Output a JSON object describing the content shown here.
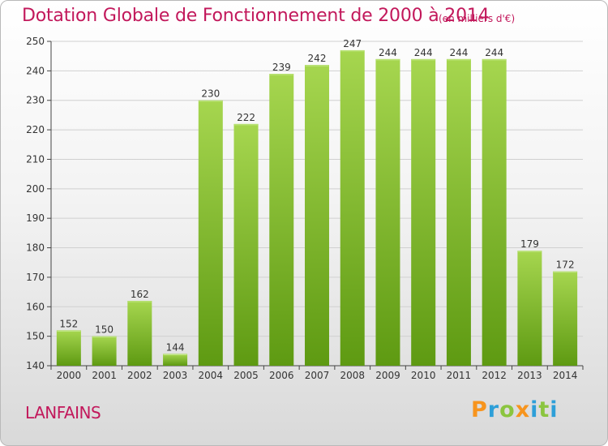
{
  "header": {
    "title": "Dotation Globale de Fonctionnement de 2000 à 2014",
    "unit": "(en milliers d'€)"
  },
  "footer": {
    "place": "LANFAINS",
    "logo": "Proxiti"
  },
  "colors": {
    "accent": "#c2185b",
    "bar_light": "#a6d64f",
    "bar_dark": "#5e9a12",
    "grid": "#d0d0d0"
  },
  "chart_data": {
    "type": "bar",
    "title": "Dotation Globale de Fonctionnement de 2000 à 2014",
    "xlabel": "",
    "ylabel": "",
    "categories": [
      "2000",
      "2001",
      "2002",
      "2003",
      "2004",
      "2005",
      "2006",
      "2007",
      "2008",
      "2009",
      "2010",
      "2011",
      "2012",
      "2013",
      "2014"
    ],
    "values": [
      152,
      150,
      162,
      144,
      230,
      222,
      239,
      242,
      247,
      244,
      244,
      244,
      244,
      179,
      172
    ],
    "ylim": [
      140,
      250
    ],
    "yticks": [
      140,
      150,
      160,
      170,
      180,
      190,
      200,
      210,
      220,
      230,
      240,
      250
    ],
    "grid": true,
    "data_labels": true
  }
}
